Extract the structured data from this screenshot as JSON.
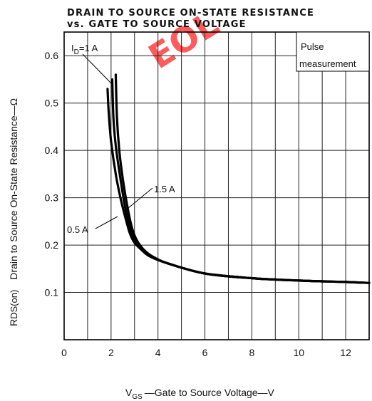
{
  "chart_data": {
    "type": "line",
    "title_line1": "DRAIN TO SOURCE ON-STATE RESISTANCE",
    "title_line2": "vs. GATE TO SOURCE VOLTAGE",
    "xlabel": {
      "sym": "V",
      "sub": "GS",
      "text": "—Gate to Source Voltage—V"
    },
    "ylabel": {
      "prefix": "R",
      "sub": "DS(on)",
      "text": "Drain to Source On-State Resistance—Ω"
    },
    "xlim": [
      0,
      13
    ],
    "ylim": [
      0,
      0.65
    ],
    "x_ticks": [
      0,
      2,
      4,
      6,
      8,
      10,
      12
    ],
    "y_ticks": [
      0.1,
      0.2,
      0.3,
      0.4,
      0.5,
      0.6
    ],
    "x_grid": [
      1,
      2,
      3,
      4,
      5,
      6,
      7,
      8,
      9,
      10,
      11,
      12
    ],
    "y_grid": [
      0.1,
      0.2,
      0.3,
      0.4,
      0.5,
      0.6
    ],
    "grid": true,
    "legend_box": {
      "line1": "Pulse",
      "line2": "measurement"
    },
    "series": [
      {
        "name": "0.5 A",
        "x": [
          1.85,
          1.9,
          2.0,
          2.2,
          2.4,
          2.6,
          2.8,
          3.0,
          3.3,
          3.7,
          4.5,
          6.0,
          8.0,
          10.0,
          12.0,
          13.0
        ],
        "y": [
          0.53,
          0.48,
          0.42,
          0.35,
          0.3,
          0.26,
          0.225,
          0.205,
          0.19,
          0.175,
          0.16,
          0.14,
          0.13,
          0.125,
          0.122,
          0.12
        ]
      },
      {
        "name": "1 A",
        "x": [
          2.05,
          2.1,
          2.2,
          2.4,
          2.6,
          2.8,
          3.0,
          3.3,
          3.7,
          4.5,
          6.0,
          8.0,
          10.0,
          12.0,
          13.0
        ],
        "y": [
          0.55,
          0.47,
          0.41,
          0.34,
          0.28,
          0.24,
          0.21,
          0.19,
          0.175,
          0.16,
          0.14,
          0.13,
          0.125,
          0.122,
          0.12
        ]
      },
      {
        "name": "1.5 A",
        "x": [
          2.2,
          2.25,
          2.35,
          2.5,
          2.7,
          2.9,
          3.1,
          3.4,
          3.8,
          4.5,
          6.0,
          8.0,
          10.0,
          12.0,
          13.0
        ],
        "y": [
          0.56,
          0.47,
          0.4,
          0.34,
          0.28,
          0.235,
          0.21,
          0.19,
          0.175,
          0.16,
          0.14,
          0.13,
          0.125,
          0.122,
          0.12
        ]
      }
    ],
    "annotations": [
      {
        "id": "id1",
        "sym": "I",
        "sub": "D",
        "text": "=1 A"
      },
      {
        "id": "id15",
        "text": "1.5 A"
      },
      {
        "id": "id05",
        "text": "0.5 A"
      }
    ],
    "watermark": "EOL"
  }
}
